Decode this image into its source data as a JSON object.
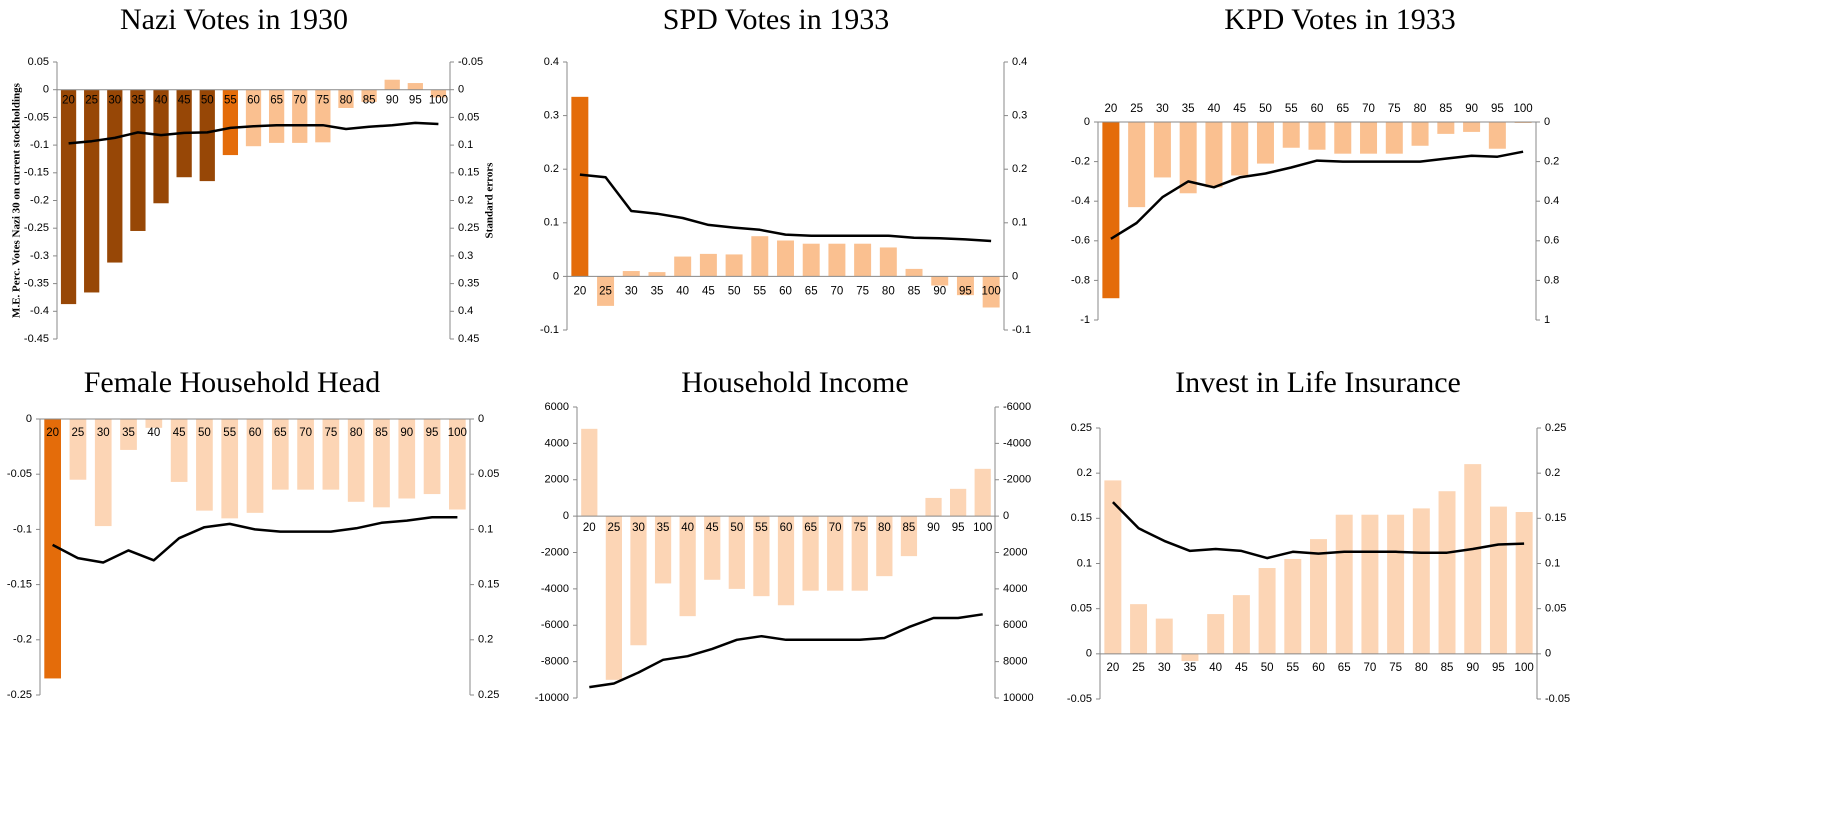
{
  "chart_data": [
    {
      "type": "bar_line",
      "title": "Nazi Votes in 1930",
      "y_label": "M.E. Perc. Votes Nazi 30 on current stockholdings",
      "y2_label": "Standard errors",
      "categories": [
        20,
        25,
        30,
        35,
        40,
        45,
        50,
        55,
        60,
        65,
        70,
        75,
        80,
        85,
        90,
        95,
        100
      ],
      "bars": {
        "values": [
          -0.387,
          -0.366,
          -0.312,
          -0.255,
          -0.205,
          -0.158,
          -0.165,
          -0.118,
          -0.102,
          -0.096,
          -0.096,
          -0.095,
          -0.033,
          -0.022,
          0.018,
          0.012,
          -0.014
        ],
        "colors": [
          "#974706",
          "#974706",
          "#974706",
          "#974706",
          "#974706",
          "#974706",
          "#974706",
          "#e46c0a",
          "#fac090",
          "#fac090",
          "#fac090",
          "#fac090",
          "#fac090",
          "#fac090",
          "#fac090",
          "#fac090",
          "#fac090"
        ]
      },
      "line": {
        "axis": "y2",
        "color": "#000000",
        "values": [
          0.097,
          0.093,
          0.087,
          0.077,
          0.082,
          0.078,
          0.077,
          0.069,
          0.066,
          0.064,
          0.064,
          0.064,
          0.071,
          0.067,
          0.064,
          0.06,
          0.062
        ]
      },
      "ylim": [
        -0.45,
        0.05
      ],
      "yticks": [
        0.05,
        0,
        -0.05,
        -0.1,
        -0.15,
        -0.2,
        -0.25,
        -0.3,
        -0.35,
        -0.4,
        -0.45
      ],
      "y2lim": [
        0.45,
        -0.05
      ],
      "y2ticks": [
        -0.05,
        0,
        0.05,
        0.1,
        0.15,
        0.2,
        0.25,
        0.3,
        0.35,
        0.4,
        0.45
      ]
    },
    {
      "type": "bar_line",
      "title": "SPD Votes in 1933",
      "categories": [
        20,
        25,
        30,
        35,
        40,
        45,
        50,
        55,
        60,
        65,
        70,
        75,
        80,
        85,
        90,
        95,
        100
      ],
      "bars": {
        "values": [
          0.335,
          -0.055,
          0.01,
          0.008,
          0.037,
          0.042,
          0.041,
          0.075,
          0.067,
          0.061,
          0.061,
          0.061,
          0.054,
          0.014,
          -0.017,
          -0.035,
          -0.058
        ],
        "colors": [
          "#e46c0a",
          "#fac090",
          "#fac090",
          "#fac090",
          "#fac090",
          "#fac090",
          "#fac090",
          "#fac090",
          "#fac090",
          "#fac090",
          "#fac090",
          "#fac090",
          "#fac090",
          "#fac090",
          "#fac090",
          "#fac090",
          "#fac090"
        ]
      },
      "line": {
        "axis": "y2",
        "color": "#000000",
        "values": [
          0.19,
          0.185,
          0.122,
          0.117,
          0.109,
          0.096,
          0.091,
          0.087,
          0.078,
          0.076,
          0.076,
          0.076,
          0.076,
          0.072,
          0.071,
          0.069,
          0.066
        ]
      },
      "ylim": [
        -0.1,
        0.4
      ],
      "yticks": [
        0.4,
        0.3,
        0.2,
        0.1,
        0,
        -0.1
      ],
      "y2lim": [
        -0.1,
        0.4
      ],
      "y2ticks": [
        0.4,
        0.3,
        0.2,
        0.1,
        0,
        -0.1
      ]
    },
    {
      "type": "bar_line",
      "title": "KPD Votes in 1933",
      "categories": [
        20,
        25,
        30,
        35,
        40,
        45,
        50,
        55,
        60,
        65,
        70,
        75,
        80,
        85,
        90,
        95,
        100
      ],
      "bars": {
        "values": [
          -0.89,
          -0.43,
          -0.28,
          -0.36,
          -0.33,
          -0.27,
          -0.21,
          -0.13,
          -0.14,
          -0.16,
          -0.16,
          -0.16,
          -0.12,
          -0.06,
          -0.05,
          -0.135,
          -0.005
        ],
        "colors": [
          "#e46c0a",
          "#fac090",
          "#fac090",
          "#fac090",
          "#fac090",
          "#fac090",
          "#fac090",
          "#fac090",
          "#fac090",
          "#fac090",
          "#fac090",
          "#fac090",
          "#fac090",
          "#fac090",
          "#fac090",
          "#fac090",
          "#fac090"
        ]
      },
      "line": {
        "axis": "y2",
        "color": "#000000",
        "values": [
          0.59,
          0.51,
          0.38,
          0.3,
          0.33,
          0.28,
          0.26,
          0.23,
          0.195,
          0.2,
          0.2,
          0.2,
          0.2,
          0.185,
          0.17,
          0.175,
          0.15
        ]
      },
      "ylim": [
        -1,
        0
      ],
      "yticks": [
        0,
        -0.2,
        -0.4,
        -0.6,
        -0.8,
        -1
      ],
      "y2lim": [
        1,
        0
      ],
      "y2ticks": [
        0,
        0.2,
        0.4,
        0.6,
        0.8,
        1
      ]
    },
    {
      "type": "bar_line",
      "title": "Female Household Head",
      "categories": [
        20,
        25,
        30,
        35,
        40,
        45,
        50,
        55,
        60,
        65,
        70,
        75,
        80,
        85,
        90,
        95,
        100
      ],
      "bars": {
        "values": [
          -0.235,
          -0.055,
          -0.097,
          -0.028,
          -0.008,
          -0.057,
          -0.083,
          -0.09,
          -0.085,
          -0.064,
          -0.064,
          -0.064,
          -0.075,
          -0.08,
          -0.072,
          -0.068,
          -0.082
        ],
        "colors": [
          "#e46c0a",
          "#fcd5b5",
          "#fcd5b5",
          "#fcd5b5",
          "#fcd5b5",
          "#fcd5b5",
          "#fcd5b5",
          "#fcd5b5",
          "#fcd5b5",
          "#fcd5b5",
          "#fcd5b5",
          "#fcd5b5",
          "#fcd5b5",
          "#fcd5b5",
          "#fcd5b5",
          "#fcd5b5",
          "#fcd5b5"
        ]
      },
      "line": {
        "axis": "y2",
        "color": "#000000",
        "values": [
          0.114,
          0.126,
          0.13,
          0.119,
          0.128,
          0.108,
          0.098,
          0.095,
          0.1,
          0.102,
          0.102,
          0.102,
          0.099,
          0.094,
          0.092,
          0.089,
          0.089
        ]
      },
      "ylim": [
        -0.25,
        0
      ],
      "yticks": [
        0,
        -0.05,
        -0.1,
        -0.15,
        -0.2,
        -0.25
      ],
      "y2lim": [
        0.25,
        0
      ],
      "y2ticks": [
        0,
        0.05,
        0.1,
        0.15,
        0.2,
        0.25
      ]
    },
    {
      "type": "bar_line",
      "title": "Household Income",
      "categories": [
        20,
        25,
        30,
        35,
        40,
        45,
        50,
        55,
        60,
        65,
        70,
        75,
        80,
        85,
        90,
        95,
        100
      ],
      "bars": {
        "values": [
          4800,
          -9000,
          -7100,
          -3700,
          -5500,
          -3500,
          -4000,
          -4400,
          -4900,
          -4100,
          -4100,
          -4100,
          -3300,
          -2200,
          1000,
          1500,
          2600
        ],
        "colors": [
          "#fcd5b5",
          "#fcd5b5",
          "#fcd5b5",
          "#fcd5b5",
          "#fcd5b5",
          "#fcd5b5",
          "#fcd5b5",
          "#fcd5b5",
          "#fcd5b5",
          "#fcd5b5",
          "#fcd5b5",
          "#fcd5b5",
          "#fcd5b5",
          "#fcd5b5",
          "#fcd5b5",
          "#fcd5b5",
          "#fcd5b5"
        ]
      },
      "line": {
        "axis": "y2",
        "color": "#000000",
        "values": [
          9400,
          9200,
          8600,
          7900,
          7700,
          7300,
          6800,
          6600,
          6800,
          6800,
          6800,
          6800,
          6700,
          6100,
          5600,
          5600,
          5400
        ]
      },
      "ylim": [
        -10000,
        6000
      ],
      "yticks": [
        6000,
        4000,
        2000,
        0,
        -2000,
        -4000,
        -6000,
        -8000,
        -10000
      ],
      "y2lim": [
        10000,
        -6000
      ],
      "y2ticks": [
        -6000,
        -4000,
        -2000,
        0,
        2000,
        4000,
        6000,
        8000,
        10000
      ]
    },
    {
      "type": "bar_line",
      "title": "Invest in Life Insurance",
      "categories": [
        20,
        25,
        30,
        35,
        40,
        45,
        50,
        55,
        60,
        65,
        70,
        75,
        80,
        85,
        90,
        95,
        100
      ],
      "bars": {
        "values": [
          0.192,
          0.055,
          0.039,
          -0.008,
          0.044,
          0.065,
          0.095,
          0.105,
          0.127,
          0.154,
          0.154,
          0.154,
          0.161,
          0.18,
          0.21,
          0.163,
          0.157
        ],
        "colors": [
          "#fcd5b5",
          "#fcd5b5",
          "#fcd5b5",
          "#fcd5b5",
          "#fcd5b5",
          "#fcd5b5",
          "#fcd5b5",
          "#fcd5b5",
          "#fcd5b5",
          "#fcd5b5",
          "#fcd5b5",
          "#fcd5b5",
          "#fcd5b5",
          "#fcd5b5",
          "#fcd5b5",
          "#fcd5b5",
          "#fcd5b5"
        ]
      },
      "line": {
        "axis": "y2",
        "color": "#000000",
        "values": [
          0.168,
          0.139,
          0.125,
          0.114,
          0.116,
          0.114,
          0.106,
          0.113,
          0.111,
          0.113,
          0.113,
          0.113,
          0.112,
          0.112,
          0.116,
          0.121,
          0.122
        ]
      },
      "ylim": [
        -0.05,
        0.25
      ],
      "yticks": [
        0.25,
        0.2,
        0.15,
        0.1,
        0.05,
        0,
        -0.05
      ],
      "y2lim": [
        -0.05,
        0.25
      ],
      "y2ticks": [
        0.25,
        0.2,
        0.15,
        0.1,
        0.05,
        0,
        -0.05
      ]
    }
  ]
}
